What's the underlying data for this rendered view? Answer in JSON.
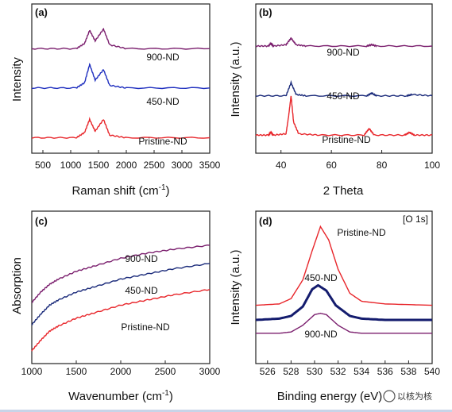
{
  "chart_data": [
    {
      "panel": "(a)",
      "type": "line",
      "xlabel_main": "Raman shift (cm",
      "xlabel_sup": "-1",
      "xlabel_end": ")",
      "ylabel": "Intensity",
      "xlim": [
        300,
        3500
      ],
      "xticks": [
        "500",
        "1000",
        "1500",
        "2000",
        "2500",
        "3000",
        "3500"
      ],
      "series": [
        {
          "name": "900-ND",
          "color": "#7b1f6e",
          "x": [
            300,
            1100,
            1250,
            1340,
            1440,
            1590,
            1700,
            2000,
            3500
          ],
          "y": [
            78,
            78,
            82,
            92,
            84,
            93,
            81,
            78,
            78
          ]
        },
        {
          "name": "450-ND",
          "color": "#1f2fbf",
          "x": [
            300,
            1100,
            1250,
            1340,
            1440,
            1590,
            1700,
            2000,
            3500
          ],
          "y": [
            48,
            48,
            52,
            66,
            54,
            62,
            50,
            48,
            48
          ]
        },
        {
          "name": "Pristine-ND",
          "color": "#e8252a",
          "x": [
            300,
            1100,
            1250,
            1340,
            1440,
            1590,
            1700,
            2000,
            3500
          ],
          "y": [
            10,
            10,
            14,
            24,
            15,
            24,
            12,
            10,
            10
          ]
        }
      ]
    },
    {
      "panel": "(b)",
      "type": "line",
      "xlabel": "2 Theta",
      "ylabel": "Intensity (a.u.)",
      "xlim": [
        30,
        100
      ],
      "xticks": [
        "40",
        "60",
        "80",
        "100"
      ],
      "series": [
        {
          "name": "900-ND",
          "color": "#7b1f6e",
          "x": [
            30,
            35,
            36,
            37,
            42,
            44,
            46,
            50,
            74,
            76,
            78,
            100
          ],
          "y": [
            80,
            80,
            82,
            80,
            81,
            86,
            81,
            80,
            80,
            81,
            80,
            80
          ]
        },
        {
          "name": "450-ND",
          "color": "#1a2a7a",
          "x": [
            30,
            42,
            44,
            46,
            50,
            74,
            76,
            78,
            90,
            92,
            100
          ],
          "y": [
            42,
            42,
            52,
            43,
            42,
            42,
            44,
            42,
            42,
            43,
            42
          ]
        },
        {
          "name": "Pristine-ND",
          "color": "#e8252a",
          "x": [
            30,
            35,
            36,
            37,
            42,
            43,
            44,
            45,
            47,
            55,
            73,
            75,
            77,
            89,
            91,
            93,
            100
          ],
          "y": [
            12,
            12,
            14,
            12,
            13,
            26,
            42,
            22,
            13,
            12,
            12,
            17,
            12,
            12,
            14,
            12,
            12
          ]
        }
      ]
    },
    {
      "panel": "(c)",
      "type": "line",
      "xlabel_main": "Wavenumber (cm",
      "xlabel_sup": "-1",
      "xlabel_end": ")",
      "ylabel": "Absorption",
      "xlim": [
        1000,
        3000
      ],
      "xticks": [
        "1000",
        "1500",
        "2000",
        "2500",
        "3000"
      ],
      "series": [
        {
          "name": "900-ND",
          "color": "#7b1f6e",
          "x": [
            1000,
            1100,
            1200,
            1300,
            1500,
            1700,
            2000,
            2300,
            2600,
            3000
          ],
          "y": [
            42,
            50,
            56,
            60,
            66,
            70,
            76,
            80,
            83,
            86
          ]
        },
        {
          "name": "450-ND",
          "color": "#1a2a7a",
          "x": [
            1000,
            1100,
            1200,
            1300,
            1500,
            1700,
            2000,
            2300,
            2600,
            3000
          ],
          "y": [
            25,
            33,
            40,
            44,
            50,
            54,
            60,
            64,
            68,
            72
          ]
        },
        {
          "name": "Pristine-ND",
          "color": "#e8252a",
          "x": [
            1000,
            1100,
            1200,
            1300,
            1500,
            1700,
            2000,
            2300,
            2600,
            3000
          ],
          "y": [
            5,
            13,
            20,
            24,
            30,
            34,
            40,
            44,
            48,
            52
          ]
        }
      ]
    },
    {
      "panel": "(d)",
      "type": "line",
      "xlabel": "Binding energy (eV)",
      "ylabel": "Intensity (a.u.)",
      "annotation": "[O 1s]",
      "xlim": [
        525,
        540
      ],
      "xticks": [
        "526",
        "528",
        "530",
        "532",
        "534",
        "536",
        "538",
        "540"
      ],
      "series": [
        {
          "name": "Pristine-ND",
          "color": "#e8252a",
          "x": [
            525,
            527,
            528,
            529,
            529.8,
            530.5,
            531.2,
            532,
            533,
            534,
            536,
            540
          ],
          "y": [
            33,
            34,
            38,
            52,
            74,
            92,
            82,
            60,
            42,
            36,
            34,
            33
          ]
        },
        {
          "name": "450-ND",
          "color": "#141c6e",
          "x": [
            525,
            527,
            528,
            529,
            529.8,
            530.3,
            531,
            531.8,
            533,
            534,
            536,
            540
          ],
          "y": [
            22,
            23,
            25,
            32,
            45,
            48,
            44,
            33,
            25,
            23,
            22,
            22
          ]
        },
        {
          "name": "900-ND",
          "color": "#7b1f6e",
          "x": [
            525,
            527,
            528,
            529,
            530,
            530.5,
            531,
            532,
            533,
            534,
            536,
            540
          ],
          "y": [
            12,
            12,
            13,
            18,
            26,
            27,
            26,
            18,
            13,
            12,
            12,
            12
          ]
        }
      ]
    }
  ],
  "watermark": "以核为核"
}
